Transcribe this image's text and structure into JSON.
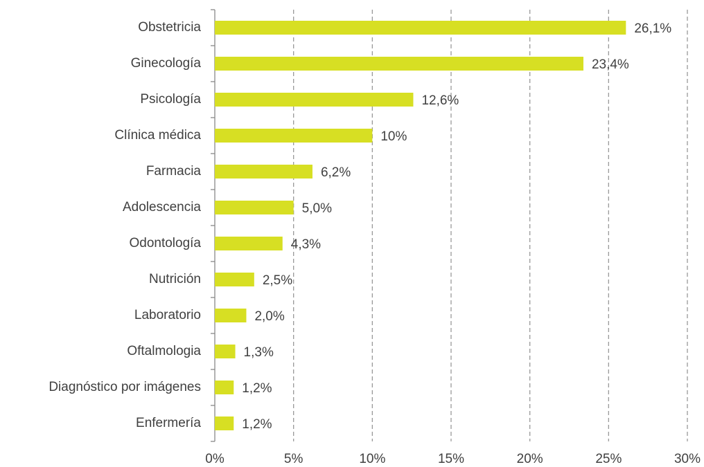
{
  "chart_data": {
    "type": "bar",
    "orientation": "horizontal",
    "categories": [
      "Obstetricia",
      "Ginecología",
      "Psicología",
      "Clínica médica",
      "Farmacia",
      "Adolescencia",
      "Odontología",
      "Nutrición",
      "Laboratorio",
      "Oftalmologia",
      "Diagnóstico por imágenes",
      "Enfermería"
    ],
    "values": [
      26.1,
      23.4,
      12.6,
      10,
      6.2,
      5.0,
      4.3,
      2.5,
      2.0,
      1.3,
      1.2,
      1.2
    ],
    "value_labels": [
      "26,1%",
      "23,4%",
      "12,6%",
      "10%",
      "6,2%",
      "5,0%",
      "4,3%",
      "2,5%",
      "2,0%",
      "1,3%",
      "1,2%",
      "1,2%"
    ],
    "color": "#d7df23",
    "xlim": [
      0,
      30
    ],
    "xticks": [
      {
        "value": 0,
        "label": "0%"
      },
      {
        "value": 5,
        "label": "5%"
      },
      {
        "value": 10,
        "label": "10%"
      },
      {
        "value": 15,
        "label": "15%"
      },
      {
        "value": 20,
        "label": "20%"
      },
      {
        "value": 25,
        "label": "25%"
      },
      {
        "value": 30,
        "label": "30%"
      }
    ],
    "grid": true
  }
}
